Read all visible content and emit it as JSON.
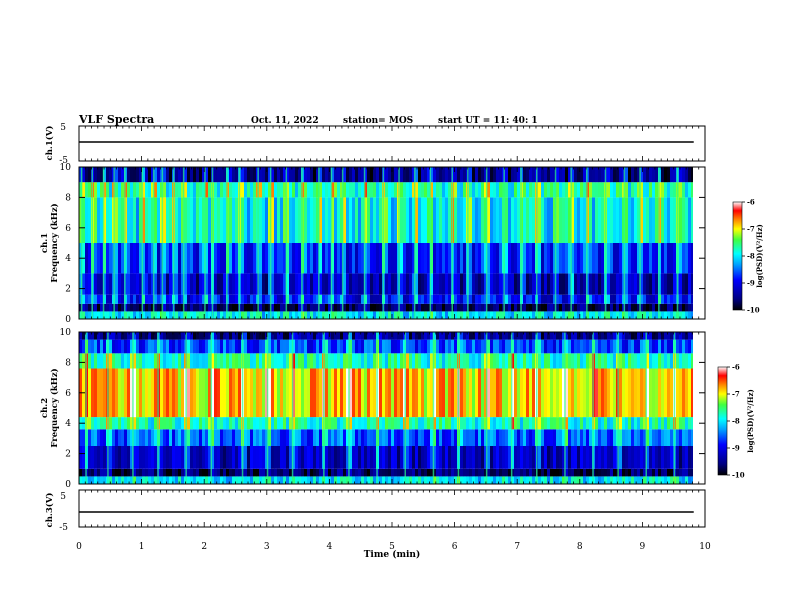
{
  "header": {
    "title": "VLF Spectra",
    "date": "Oct. 11, 2022",
    "station": "station= MOS",
    "start": "start  UT  =  11: 40: 1"
  },
  "chart_data": [
    {
      "type": "line",
      "panel": "ch.1 voltage",
      "ylabel": "ch.1(V)",
      "xlim": [
        0,
        10
      ],
      "ylim": [
        -5,
        5
      ],
      "yticks": [
        "5",
        "-5"
      ],
      "series": [
        {
          "x": [
            0,
            9.82
          ],
          "values": [
            0,
            0
          ]
        }
      ]
    },
    {
      "type": "heatmap",
      "panel": "ch.1 spectrogram",
      "ylabel": "Frequency (kHz)",
      "ylabel_prefix": "ch.1",
      "xlim": [
        0,
        10
      ],
      "ylim": [
        0,
        10
      ],
      "yticks": [
        "0",
        "2",
        "4",
        "6",
        "8",
        "10"
      ],
      "x_end": 9.82,
      "colorbar": {
        "label": "log(PSD)(V²/Hz)",
        "range": [
          -10,
          -6
        ],
        "ticks": [
          "-6",
          "-7",
          "-8",
          "-9",
          "-10"
        ]
      },
      "bands": [
        {
          "f_low": 0,
          "f_high": 0.5,
          "level": -8.0
        },
        {
          "f_low": 0.5,
          "f_high": 1.0,
          "level": -9.7
        },
        {
          "f_low": 1.0,
          "f_high": 1.6,
          "level": -9.0
        },
        {
          "f_low": 1.6,
          "f_high": 3.0,
          "level": -9.3
        },
        {
          "f_low": 3.0,
          "f_high": 5.0,
          "level": -8.9
        },
        {
          "f_low": 5.0,
          "f_high": 8.0,
          "level": -8.0
        },
        {
          "f_low": 8.0,
          "f_high": 9.0,
          "level": -7.8
        },
        {
          "f_low": 9.0,
          "f_high": 10.0,
          "level": -9.6
        }
      ],
      "bursts_min": [
        0.03,
        0.2,
        0.38,
        0.55,
        0.72,
        1.0,
        1.18,
        1.32,
        1.5,
        1.66,
        2.0,
        2.12,
        2.35,
        2.55,
        2.85,
        3.05,
        3.3,
        3.55,
        3.82,
        4.02,
        4.2,
        4.55,
        4.85,
        5.1,
        5.35,
        5.6,
        5.95,
        6.2,
        6.5,
        6.78,
        7.05,
        7.3,
        7.6,
        7.85,
        8.1,
        8.4,
        8.7,
        8.95,
        9.25,
        9.55
      ]
    },
    {
      "type": "heatmap",
      "panel": "ch.2 spectrogram",
      "ylabel": "Frequency (kHz)",
      "ylabel_prefix": "ch.2",
      "xlim": [
        0,
        10
      ],
      "ylim": [
        0,
        10
      ],
      "yticks": [
        "0",
        "2",
        "4",
        "6",
        "8",
        "10"
      ],
      "x_end": 9.82,
      "colorbar": {
        "label": "log(PSD)(V²/Hz)",
        "range": [
          -10,
          -6
        ],
        "ticks": [
          "-6",
          "-7",
          "-8",
          "-9",
          "-10"
        ]
      },
      "bands": [
        {
          "f_low": 0,
          "f_high": 0.5,
          "level": -8.0
        },
        {
          "f_low": 0.5,
          "f_high": 1.0,
          "level": -9.7
        },
        {
          "f_low": 1.0,
          "f_high": 2.5,
          "level": -9.3
        },
        {
          "f_low": 2.5,
          "f_high": 3.6,
          "level": -8.6
        },
        {
          "f_low": 3.6,
          "f_high": 4.4,
          "level": -7.8
        },
        {
          "f_low": 4.4,
          "f_high": 7.6,
          "level": -6.9
        },
        {
          "f_low": 7.6,
          "f_high": 8.6,
          "level": -7.8
        },
        {
          "f_low": 8.6,
          "f_high": 9.5,
          "level": -8.7
        },
        {
          "f_low": 9.5,
          "f_high": 10.0,
          "level": -9.5
        }
      ],
      "bursts_min": [
        0.1,
        0.45,
        0.85,
        1.25,
        1.7,
        2.1,
        2.6,
        3.0,
        3.4,
        3.9,
        4.3,
        4.75,
        5.2,
        5.65,
        6.05,
        6.5,
        6.9,
        7.3,
        7.75,
        8.2,
        8.6,
        9.05,
        9.5
      ]
    },
    {
      "type": "line",
      "panel": "ch.3 voltage",
      "ylabel": "ch.3(V)",
      "xlim": [
        0,
        10
      ],
      "ylim": [
        -5,
        5
      ],
      "yticks": [
        "5",
        "-5"
      ],
      "xlabel": "Time  (min)",
      "xticks": [
        "0",
        "1",
        "2",
        "3",
        "4",
        "5",
        "6",
        "7",
        "8",
        "9",
        "10"
      ],
      "series": [
        {
          "x": [
            0,
            9.82
          ],
          "values": [
            0,
            0
          ]
        }
      ]
    }
  ]
}
